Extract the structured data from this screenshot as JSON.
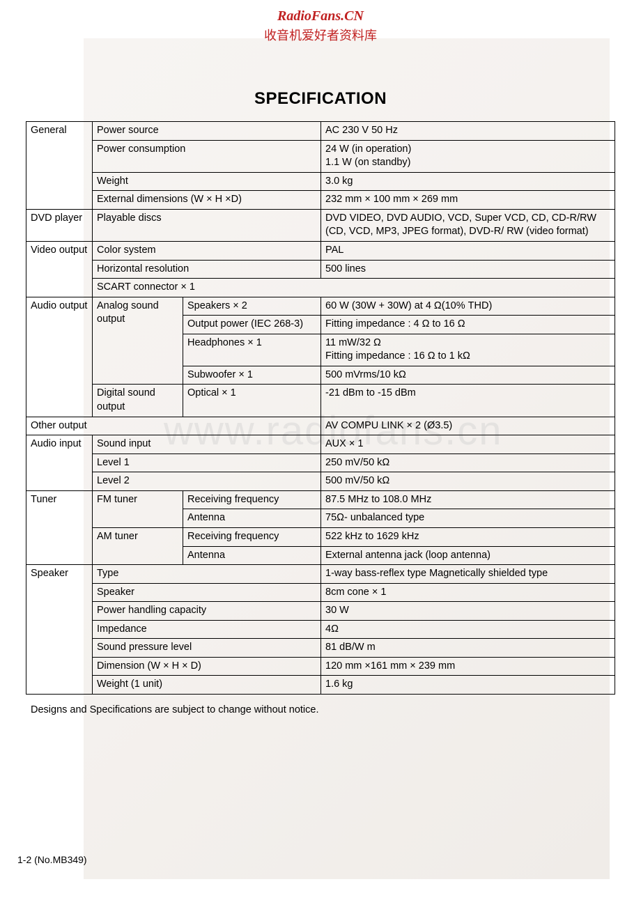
{
  "header": {
    "site_title": "RadioFans.CN",
    "site_subtitle": "收音机爱好者资料库"
  },
  "watermark": "www.radiofans.cn",
  "title": "SPECIFICATION",
  "footnote": "Designs and Specifications are subject to change without notice.",
  "page_number": "1-2 (No.MB349)",
  "rows": [
    {
      "c1": "General",
      "c2": "Power source",
      "c3": "",
      "c4": "AC 230 V 50 Hz",
      "r1": 4
    },
    {
      "c2": "Power consumption",
      "c3": "",
      "c4": "24 W (in operation)\n1.1 W (on standby)"
    },
    {
      "c2": "Weight",
      "c3": "",
      "c4": "3.0 kg"
    },
    {
      "c2": "External dimensions (W × H ×D)",
      "c3": "",
      "c4": "232 mm × 100 mm × 269 mm"
    },
    {
      "c1": "DVD player",
      "c2": "Playable discs",
      "c3": "",
      "c4": "DVD VIDEO, DVD AUDIO, VCD, Super VCD, CD, CD-R/RW (CD, VCD, MP3, JPEG format), DVD-R/ RW (video format)"
    },
    {
      "c1": "Video output",
      "c2": "Color system",
      "c3": "",
      "c4": "PAL",
      "r1": 3
    },
    {
      "c2": "Horizontal resolution",
      "c3": "",
      "c4": "500 lines"
    },
    {
      "c2": "SCART connector × 1",
      "c3": "",
      "c4": "",
      "span23full": true
    },
    {
      "c1": "Audio output",
      "c2": "Analog sound output",
      "c3": "Speakers × 2",
      "c4": "60 W (30W + 30W) at 4 Ω(10% THD)",
      "r1": 5,
      "r2": 4
    },
    {
      "c3": "Output power (IEC 268-3)",
      "c4": "Fitting impedance : 4 Ω to 16 Ω"
    },
    {
      "c3": "Headphones × 1",
      "c4": "11 mW/32 Ω\nFitting impedance : 16 Ω to 1 kΩ"
    },
    {
      "c3": "Subwoofer × 1",
      "c4": "500 mVrms/10 kΩ"
    },
    {
      "c2": "Digital sound output",
      "c3": "Optical × 1",
      "c4": "-21 dBm to -15 dBm"
    },
    {
      "c1": "Other output",
      "c2": "",
      "c3": "",
      "c4": "AV COMPU LINK × 2 (Ø3.5)",
      "span123": true
    },
    {
      "c1": "Audio input",
      "c2": "Sound input",
      "c3": "",
      "c4": "AUX × 1",
      "r1": 3
    },
    {
      "c2": "Level 1",
      "c3": "",
      "c4": "250 mV/50 kΩ"
    },
    {
      "c2": "Level 2",
      "c3": "",
      "c4": "500 mV/50 kΩ"
    },
    {
      "c1": "Tuner",
      "c2": "FM tuner",
      "c3": "Receiving frequency",
      "c4": "87.5 MHz to 108.0 MHz",
      "r1": 4,
      "r2": 2
    },
    {
      "c3": "Antenna",
      "c4": "75Ω- unbalanced type"
    },
    {
      "c2": "AM tuner",
      "c3": "Receiving frequency",
      "c4": "522 kHz to 1629 kHz",
      "r2": 2
    },
    {
      "c3": "Antenna",
      "c4": "External antenna jack (loop antenna)"
    },
    {
      "c1": "Speaker",
      "c2": "Type",
      "c3": "",
      "c4": "1-way bass-reflex type Magnetically shielded type",
      "r1": 7
    },
    {
      "c2": "Speaker",
      "c3": "",
      "c4": "8cm cone × 1"
    },
    {
      "c2": "Power handling capacity",
      "c3": "",
      "c4": "30 W"
    },
    {
      "c2": "Impedance",
      "c3": "",
      "c4": "4Ω"
    },
    {
      "c2": "Sound pressure level",
      "c3": "",
      "c4": "81 dB/W m"
    },
    {
      "c2": "Dimension (W × H × D)",
      "c3": "",
      "c4": "120 mm ×161 mm × 239 mm"
    },
    {
      "c2": "Weight (1 unit)",
      "c3": "",
      "c4": "1.6 kg"
    }
  ]
}
